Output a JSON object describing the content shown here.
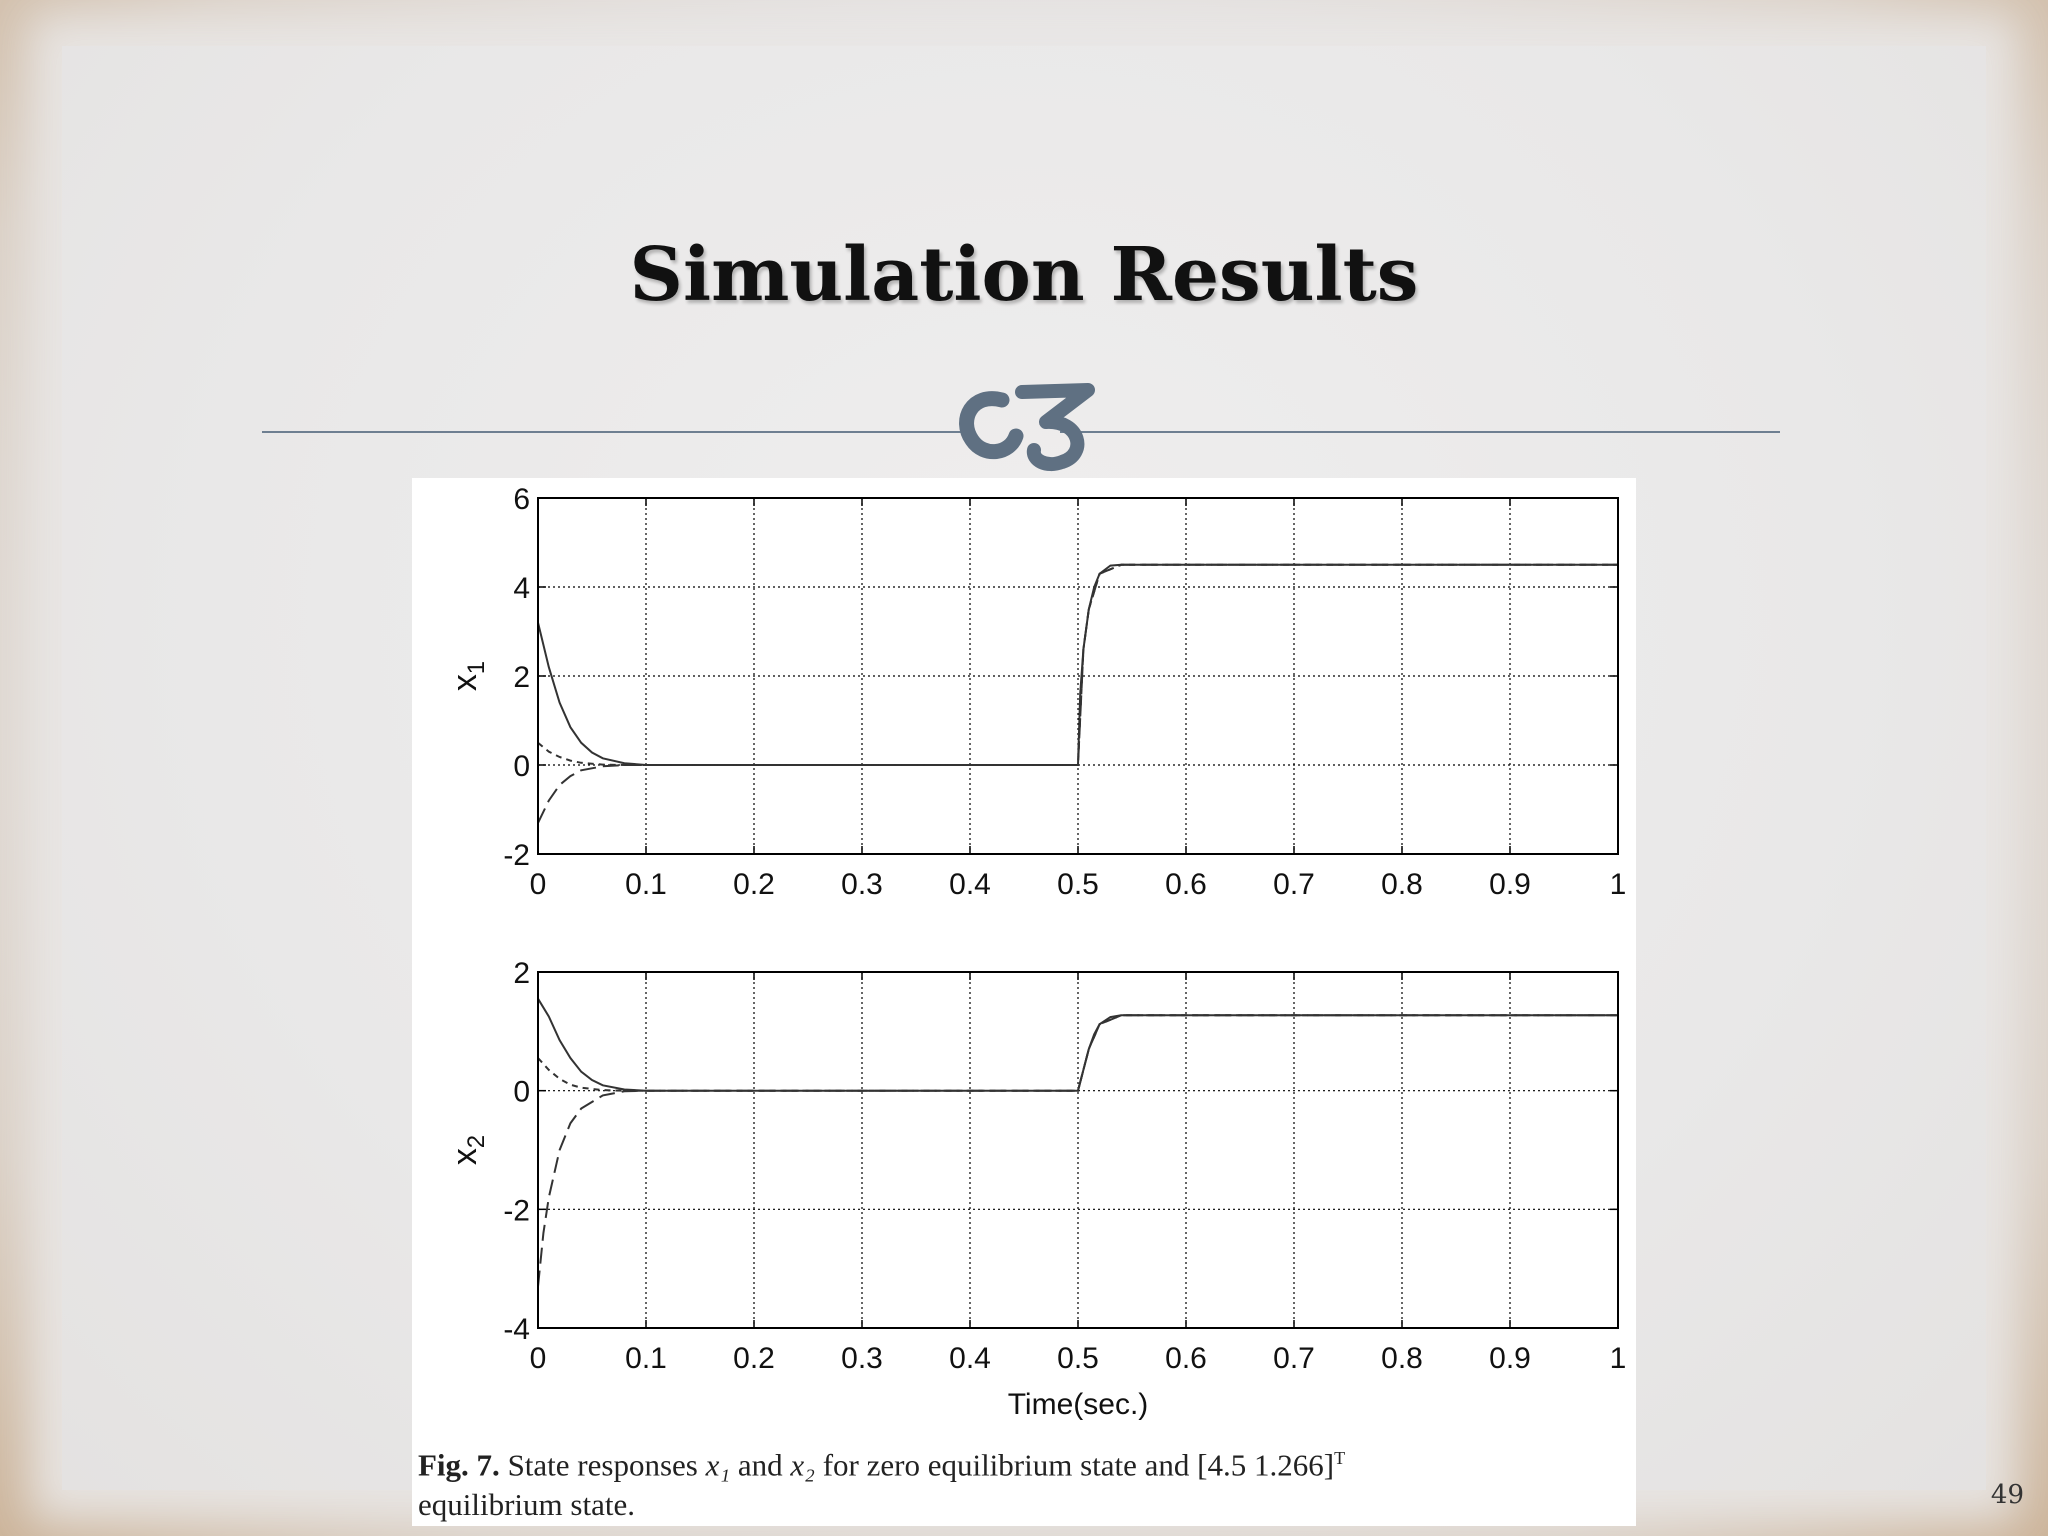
{
  "slide": {
    "title": "Simulation Results",
    "page_number": "49"
  },
  "caption": {
    "fig_label": "Fig. 7.",
    "pre": "State responses",
    "x1": "x₁",
    "and": "and",
    "x2": "x₂",
    "text_after": "for zero equilibrium state and [4.5  1.266]",
    "sup": "T",
    "line2": "equilibrium state."
  },
  "colors": {
    "divider": "#6e7f91",
    "ornament": "#5f7082",
    "trace": "#333333"
  },
  "chart_data": [
    {
      "type": "line",
      "ylabel": "x1",
      "xlabel": "",
      "xlim": [
        0,
        1
      ],
      "ylim": [
        -2,
        6
      ],
      "xticks": [
        "0",
        "0.1",
        "0.2",
        "0.3",
        "0.4",
        "0.5",
        "0.6",
        "0.7",
        "0.8",
        "0.9",
        "1"
      ],
      "yticks": [
        "-2",
        "0",
        "2",
        "4",
        "6"
      ],
      "grid": true,
      "series": [
        {
          "dash": "solid",
          "x": [
            0,
            0.01,
            0.02,
            0.03,
            0.04,
            0.05,
            0.06,
            0.08,
            0.1,
            0.3,
            0.5,
            0.502,
            0.505,
            0.51,
            0.515,
            0.52,
            0.53,
            0.54,
            0.6,
            1
          ],
          "y": [
            3.2,
            2.2,
            1.4,
            0.85,
            0.5,
            0.28,
            0.15,
            0.04,
            0,
            0,
            0,
            1.6,
            2.6,
            3.5,
            4.0,
            4.3,
            4.48,
            4.5,
            4.5,
            4.5
          ]
        },
        {
          "dash": "dashed",
          "x": [
            0,
            0.01,
            0.02,
            0.03,
            0.04,
            0.06,
            0.08,
            0.1,
            0.5,
            0.505,
            0.51,
            0.52,
            0.54,
            0.6,
            1
          ],
          "y": [
            0.5,
            0.3,
            0.18,
            0.1,
            0.05,
            0.01,
            0,
            0,
            0,
            2.6,
            3.5,
            4.3,
            4.5,
            4.5,
            4.5
          ]
        },
        {
          "dash": "longdash",
          "x": [
            0,
            0.01,
            0.02,
            0.03,
            0.04,
            0.06,
            0.08,
            0.1,
            0.5,
            0.505,
            0.51,
            0.52,
            0.54,
            0.6,
            1
          ],
          "y": [
            -1.3,
            -0.8,
            -0.45,
            -0.25,
            -0.12,
            -0.03,
            0,
            0,
            0,
            2.6,
            3.5,
            4.3,
            4.5,
            4.5,
            4.5
          ]
        }
      ]
    },
    {
      "type": "line",
      "ylabel": "x2",
      "xlabel": "Time(sec.)",
      "xlim": [
        0,
        1
      ],
      "ylim": [
        -4,
        2
      ],
      "xticks": [
        "0",
        "0.1",
        "0.2",
        "0.3",
        "0.4",
        "0.5",
        "0.6",
        "0.7",
        "0.8",
        "0.9",
        "1"
      ],
      "yticks": [
        "-4",
        "-2",
        "0",
        "2"
      ],
      "grid": true,
      "series": [
        {
          "dash": "solid",
          "x": [
            0,
            0.01,
            0.02,
            0.03,
            0.04,
            0.05,
            0.06,
            0.08,
            0.1,
            0.5,
            0.505,
            0.51,
            0.515,
            0.52,
            0.53,
            0.54,
            0.6,
            1
          ],
          "y": [
            1.55,
            1.25,
            0.85,
            0.55,
            0.32,
            0.18,
            0.09,
            0.02,
            0,
            0,
            0.35,
            0.7,
            0.95,
            1.12,
            1.24,
            1.27,
            1.27,
            1.27
          ]
        },
        {
          "dash": "dashed",
          "x": [
            0,
            0.01,
            0.02,
            0.03,
            0.04,
            0.06,
            0.08,
            0.1,
            0.5,
            0.51,
            0.52,
            0.54,
            0.6,
            1
          ],
          "y": [
            0.55,
            0.35,
            0.2,
            0.1,
            0.05,
            0.01,
            0,
            0,
            0,
            0.7,
            1.12,
            1.27,
            1.27,
            1.27
          ]
        },
        {
          "dash": "longdash",
          "x": [
            0,
            0.005,
            0.01,
            0.02,
            0.03,
            0.04,
            0.06,
            0.08,
            0.1,
            0.5,
            0.51,
            0.52,
            0.54,
            0.6,
            1
          ],
          "y": [
            -3.3,
            -2.4,
            -1.8,
            -1.0,
            -0.55,
            -0.3,
            -0.08,
            -0.01,
            0,
            0,
            0.7,
            1.12,
            1.27,
            1.27,
            1.27
          ]
        }
      ]
    }
  ]
}
